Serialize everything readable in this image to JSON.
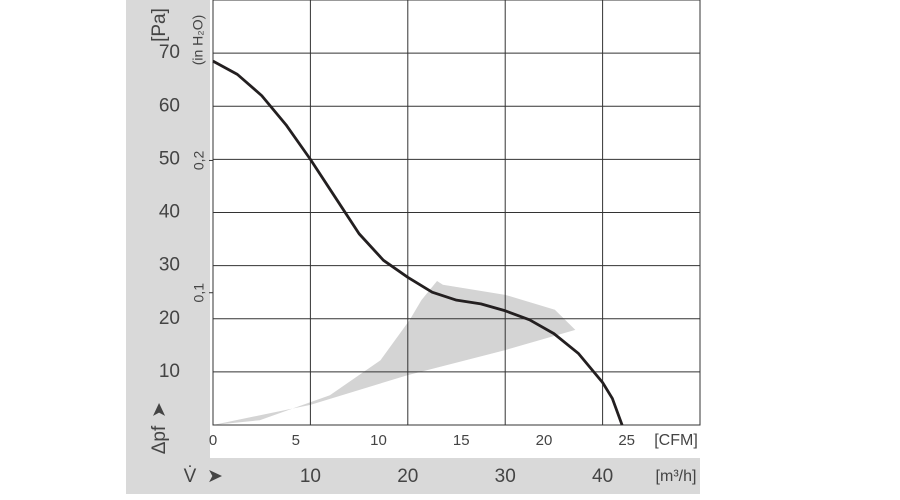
{
  "chart_data": {
    "type": "line",
    "y_label": "[Pa]",
    "y2_label": "(in H₂O)",
    "y_symbol": "Δpf",
    "x_label": "[m³/h]",
    "x2_label": "[CFM]",
    "x_symbol": "V̇",
    "xlim": [
      0,
      50
    ],
    "xticks": [
      10,
      20,
      30,
      40
    ],
    "x2lim": [
      0,
      29.43
    ],
    "x2ticks": [
      0,
      5,
      10,
      15,
      20,
      25
    ],
    "ylim": [
      0,
      80
    ],
    "yticks": [
      10,
      20,
      30,
      40,
      50,
      60,
      70
    ],
    "y2lim": [
      0,
      0.3213
    ],
    "y2ticks": [
      {
        "value": 0.1,
        "label": "0,1"
      },
      {
        "value": 0.2,
        "label": "0,2"
      }
    ],
    "grid": true,
    "series": [
      {
        "color": "#231f20",
        "x": [
          0,
          2.5,
          5,
          7.5,
          10,
          12.5,
          15,
          17.5,
          20,
          22.5,
          25,
          27.5,
          30,
          32.5,
          35,
          37.5,
          40,
          41,
          42
        ],
        "values": [
          68.5,
          66,
          62,
          56.5,
          50,
          43,
          36,
          31,
          27.8,
          25,
          23.5,
          22.8,
          21.5,
          19.8,
          17.2,
          13.5,
          8,
          5,
          0
        ]
      }
    ],
    "shaded_region": {
      "color": "#d4d4d4",
      "x": [
        0,
        10,
        20,
        30,
        37.2,
        35.1,
        30,
        23.6,
        23,
        21.4,
        20.2,
        17.2,
        12,
        4.8,
        0
      ],
      "values": [
        0,
        3.8,
        9.4,
        14.1,
        17.9,
        21.7,
        24.5,
        26.4,
        27.1,
        23.5,
        19.8,
        12.2,
        5.6,
        0.9,
        0
      ]
    }
  }
}
